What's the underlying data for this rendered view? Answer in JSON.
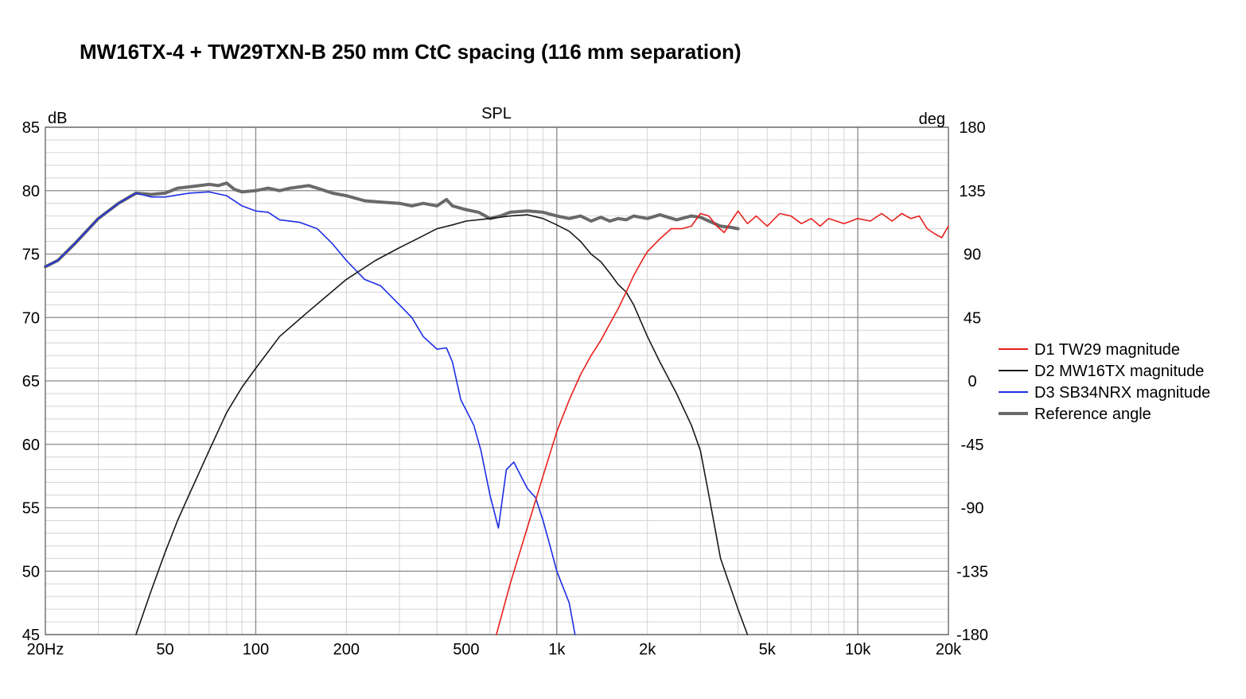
{
  "title": "MW16TX-4 + TW29TXN-B  250 mm CtC spacing  (116 mm separation)",
  "chart_data": {
    "type": "line",
    "title": "SPL",
    "ylabel": "dB",
    "y2label": "deg",
    "xscale": "log",
    "xlim": [
      20,
      20000
    ],
    "ylim": [
      45,
      85
    ],
    "y2lim": [
      -180,
      180
    ],
    "grid": true,
    "legend_position": "right",
    "xticks": [
      {
        "v": 20,
        "label": "20Hz"
      },
      {
        "v": 50,
        "label": "50"
      },
      {
        "v": 100,
        "label": "100"
      },
      {
        "v": 200,
        "label": "200"
      },
      {
        "v": 500,
        "label": "500"
      },
      {
        "v": 1000,
        "label": "1k"
      },
      {
        "v": 2000,
        "label": "2k"
      },
      {
        "v": 5000,
        "label": "5k"
      },
      {
        "v": 10000,
        "label": "10k"
      },
      {
        "v": 20000,
        "label": "20k"
      }
    ],
    "yticks": [
      85,
      80,
      75,
      70,
      65,
      60,
      55,
      50,
      45
    ],
    "y2ticks": [
      "180",
      "135",
      "90",
      "45",
      "0",
      "-45",
      "-90",
      "-135",
      "-180"
    ],
    "colors": {
      "tw29": "#e8201c",
      "mw16": "#1a1a1a",
      "sb34": "#1d2ee6",
      "ref": "#6a6a6a"
    },
    "series": [
      {
        "name": "D1 TW29 magnitude",
        "color": "#e8201c",
        "x": [
          630,
          700,
          800,
          900,
          1000,
          1100,
          1200,
          1300,
          1400,
          1500,
          1600,
          1700,
          1800,
          1900,
          2000,
          2200,
          2400,
          2600,
          2800,
          3000,
          3200,
          3400,
          3600,
          3800,
          4000,
          4300,
          4600,
          5000,
          5500,
          6000,
          6500,
          7000,
          7500,
          8000,
          9000,
          10000,
          11000,
          12000,
          13000,
          14000,
          15000,
          16000,
          17000,
          18000,
          19000,
          20000
        ],
        "y": [
          45.0,
          49.0,
          53.5,
          57.5,
          61.0,
          63.5,
          65.5,
          67.0,
          68.2,
          69.5,
          70.7,
          72.0,
          73.3,
          74.3,
          75.2,
          76.2,
          77.0,
          77.0,
          77.2,
          78.2,
          78.0,
          77.2,
          76.7,
          77.6,
          78.4,
          77.4,
          78.0,
          77.2,
          78.2,
          78.0,
          77.4,
          77.8,
          77.2,
          77.8,
          77.4,
          77.8,
          77.6,
          78.2,
          77.6,
          78.2,
          77.8,
          78.0,
          77.0,
          76.6,
          76.3,
          77.2
        ]
      },
      {
        "name": "D2 MW16TX magnitude",
        "color": "#1a1a1a",
        "x": [
          40,
          45,
          50,
          55,
          60,
          70,
          80,
          90,
          100,
          120,
          150,
          200,
          250,
          300,
          350,
          400,
          450,
          500,
          600,
          700,
          800,
          900,
          1000,
          1100,
          1200,
          1300,
          1400,
          1500,
          1600,
          1700,
          1800,
          2000,
          2200,
          2500,
          2800,
          3000,
          3200,
          3500,
          4000,
          4300
        ],
        "y": [
          45.0,
          48.5,
          51.5,
          54.0,
          56.0,
          59.5,
          62.5,
          64.5,
          66.0,
          68.5,
          70.5,
          73.0,
          74.5,
          75.5,
          76.3,
          77.0,
          77.3,
          77.6,
          77.8,
          78.0,
          78.1,
          77.8,
          77.3,
          76.8,
          76.0,
          75.0,
          74.4,
          73.5,
          72.6,
          72.0,
          71.0,
          68.5,
          66.5,
          64.0,
          61.5,
          59.5,
          56.0,
          51.0,
          47.0,
          45.0
        ]
      },
      {
        "name": "D3 SB34NRX magnitude",
        "color": "#1d2ee6",
        "x": [
          20,
          22,
          25,
          30,
          35,
          40,
          45,
          50,
          60,
          70,
          80,
          90,
          100,
          110,
          120,
          140,
          160,
          180,
          200,
          230,
          260,
          300,
          330,
          360,
          400,
          430,
          450,
          480,
          500,
          530,
          560,
          600,
          640,
          680,
          720,
          760,
          800,
          850,
          900,
          950,
          1000,
          1100,
          1150
        ],
        "y": [
          74.0,
          74.5,
          75.8,
          77.8,
          79.0,
          79.8,
          79.5,
          79.5,
          79.8,
          79.9,
          79.6,
          78.8,
          78.4,
          78.3,
          77.7,
          77.5,
          77.0,
          75.8,
          74.5,
          73.0,
          72.5,
          71.0,
          70.0,
          68.5,
          67.5,
          67.6,
          66.5,
          63.5,
          62.7,
          61.5,
          59.5,
          56.0,
          53.4,
          58.0,
          58.6,
          57.5,
          56.5,
          55.8,
          54.0,
          52.0,
          50.0,
          47.5,
          45.0
        ]
      },
      {
        "name": "Reference angle",
        "color": "#6a6a6a",
        "x": [
          20,
          22,
          25,
          30,
          35,
          40,
          45,
          50,
          55,
          60,
          65,
          70,
          75,
          80,
          85,
          90,
          100,
          110,
          120,
          130,
          140,
          150,
          160,
          180,
          200,
          230,
          260,
          300,
          330,
          360,
          400,
          430,
          450,
          500,
          550,
          600,
          650,
          700,
          800,
          900,
          1000,
          1100,
          1200,
          1300,
          1400,
          1500,
          1600,
          1700,
          1800,
          2000,
          2200,
          2500,
          2800,
          3000,
          3200,
          3500,
          3800,
          4000
        ],
        "y": [
          74.0,
          74.5,
          75.8,
          77.8,
          79.0,
          79.8,
          79.7,
          79.8,
          80.2,
          80.3,
          80.4,
          80.5,
          80.4,
          80.6,
          80.1,
          79.9,
          80.0,
          80.2,
          80.0,
          80.2,
          80.3,
          80.4,
          80.2,
          79.8,
          79.6,
          79.2,
          79.1,
          79.0,
          78.8,
          79.0,
          78.8,
          79.3,
          78.8,
          78.5,
          78.3,
          77.8,
          78.0,
          78.3,
          78.4,
          78.3,
          78.0,
          77.8,
          78.0,
          77.6,
          77.9,
          77.6,
          77.8,
          77.7,
          78.0,
          77.8,
          78.1,
          77.7,
          78.0,
          77.9,
          77.6,
          77.2,
          77.1,
          77.0
        ]
      }
    ]
  }
}
